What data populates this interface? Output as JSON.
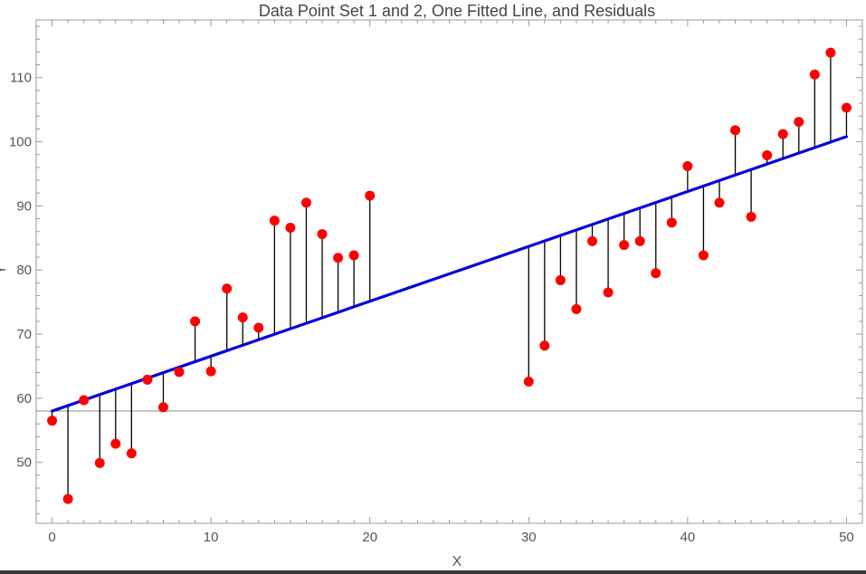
{
  "chart_data": {
    "type": "scatter",
    "title": "Data Point Set 1 and 2, One Fitted Line, and Residuals",
    "xlabel": "X",
    "ylabel": "Y",
    "xlim": [
      -1,
      51
    ],
    "ylim": [
      40.5,
      119
    ],
    "xticks": [
      0,
      10,
      20,
      30,
      40,
      50
    ],
    "yticks": [
      50,
      60,
      70,
      80,
      90,
      100,
      110
    ],
    "grid": false,
    "reference_line_y": 58,
    "colors": {
      "points": "#ff0000",
      "fit_line": "#0000dd",
      "residuals": "#000000",
      "reference": "#888888"
    },
    "fitted_line": {
      "x": [
        0,
        50
      ],
      "y": [
        58.0,
        100.8
      ]
    },
    "series": [
      {
        "points": [
          [
            0,
            56.5
          ],
          [
            1,
            44.3
          ],
          [
            2,
            59.7
          ],
          [
            3,
            49.9
          ],
          [
            4,
            52.9
          ],
          [
            5,
            51.4
          ],
          [
            6,
            62.9
          ],
          [
            7,
            58.6
          ],
          [
            8,
            64.1
          ],
          [
            9,
            72.0
          ],
          [
            10,
            64.2
          ],
          [
            11,
            77.1
          ],
          [
            12,
            72.6
          ],
          [
            13,
            71.0
          ],
          [
            14,
            87.7
          ],
          [
            15,
            86.6
          ],
          [
            16,
            90.5
          ],
          [
            17,
            85.6
          ],
          [
            18,
            81.9
          ],
          [
            19,
            82.3
          ],
          [
            20,
            91.6
          ]
        ]
      },
      {
        "points": [
          [
            30,
            62.6
          ],
          [
            31,
            68.2
          ],
          [
            32,
            78.4
          ],
          [
            33,
            73.9
          ],
          [
            34,
            84.5
          ],
          [
            35,
            76.5
          ],
          [
            36,
            83.9
          ],
          [
            37,
            84.5
          ],
          [
            38,
            79.5
          ],
          [
            39,
            87.4
          ],
          [
            40,
            96.2
          ],
          [
            41,
            82.3
          ],
          [
            42,
            90.5
          ],
          [
            43,
            101.8
          ],
          [
            44,
            88.3
          ],
          [
            45,
            97.9
          ],
          [
            46,
            101.2
          ],
          [
            47,
            103.1
          ],
          [
            48,
            110.5
          ],
          [
            49,
            113.9
          ],
          [
            50,
            105.3
          ]
        ]
      }
    ]
  }
}
